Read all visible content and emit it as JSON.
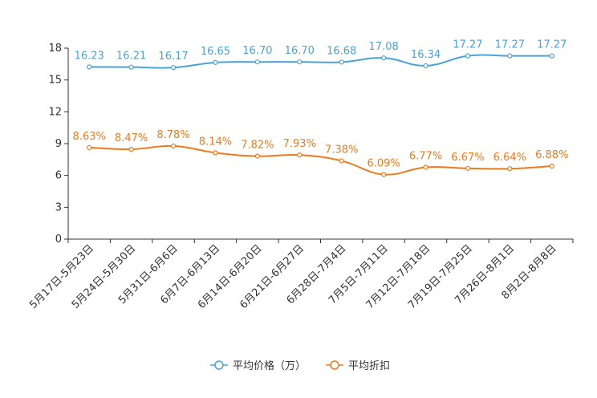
{
  "chart_data": {
    "type": "line",
    "title": "",
    "xlabel": "",
    "ylabel": "",
    "ylim": [
      0,
      18
    ],
    "yticks": [
      0,
      3,
      6,
      9,
      12,
      15,
      18
    ],
    "grid": false,
    "legend_position": "bottom-center",
    "categories": [
      "5月17日-5月23日",
      "5月24日-5月30日",
      "5月31日-6月6日",
      "6月7日-6月13日",
      "6月14日-6月20日",
      "6月21日-6月27日",
      "6月28日-7月4日",
      "7月5日-7月11日",
      "7月12日-7月18日",
      "7月19日-7月25日",
      "7月26日-8月1日",
      "8月2日-8月8日"
    ],
    "series": [
      {
        "name": "平均价格（万）",
        "color": "#4aa3d6",
        "values": [
          16.23,
          16.21,
          16.17,
          16.65,
          16.7,
          16.7,
          16.68,
          17.08,
          16.34,
          17.27,
          17.27,
          17.27
        ],
        "labels": [
          "16.23",
          "16.21",
          "16.17",
          "16.65",
          "16.70",
          "16.70",
          "16.68",
          "17.08",
          "16.34",
          "17.27",
          "17.27",
          "17.27"
        ]
      },
      {
        "name": "平均折扣",
        "color": "#f07a1a",
        "values": [
          8.63,
          8.47,
          8.78,
          8.14,
          7.82,
          7.93,
          7.38,
          6.09,
          6.77,
          6.67,
          6.64,
          6.88
        ],
        "labels": [
          "8.63%",
          "8.47%",
          "8.78%",
          "8.14%",
          "7.82%",
          "7.93%",
          "7.38%",
          "6.09%",
          "6.77%",
          "6.67%",
          "6.64%",
          "6.88%"
        ]
      }
    ]
  }
}
